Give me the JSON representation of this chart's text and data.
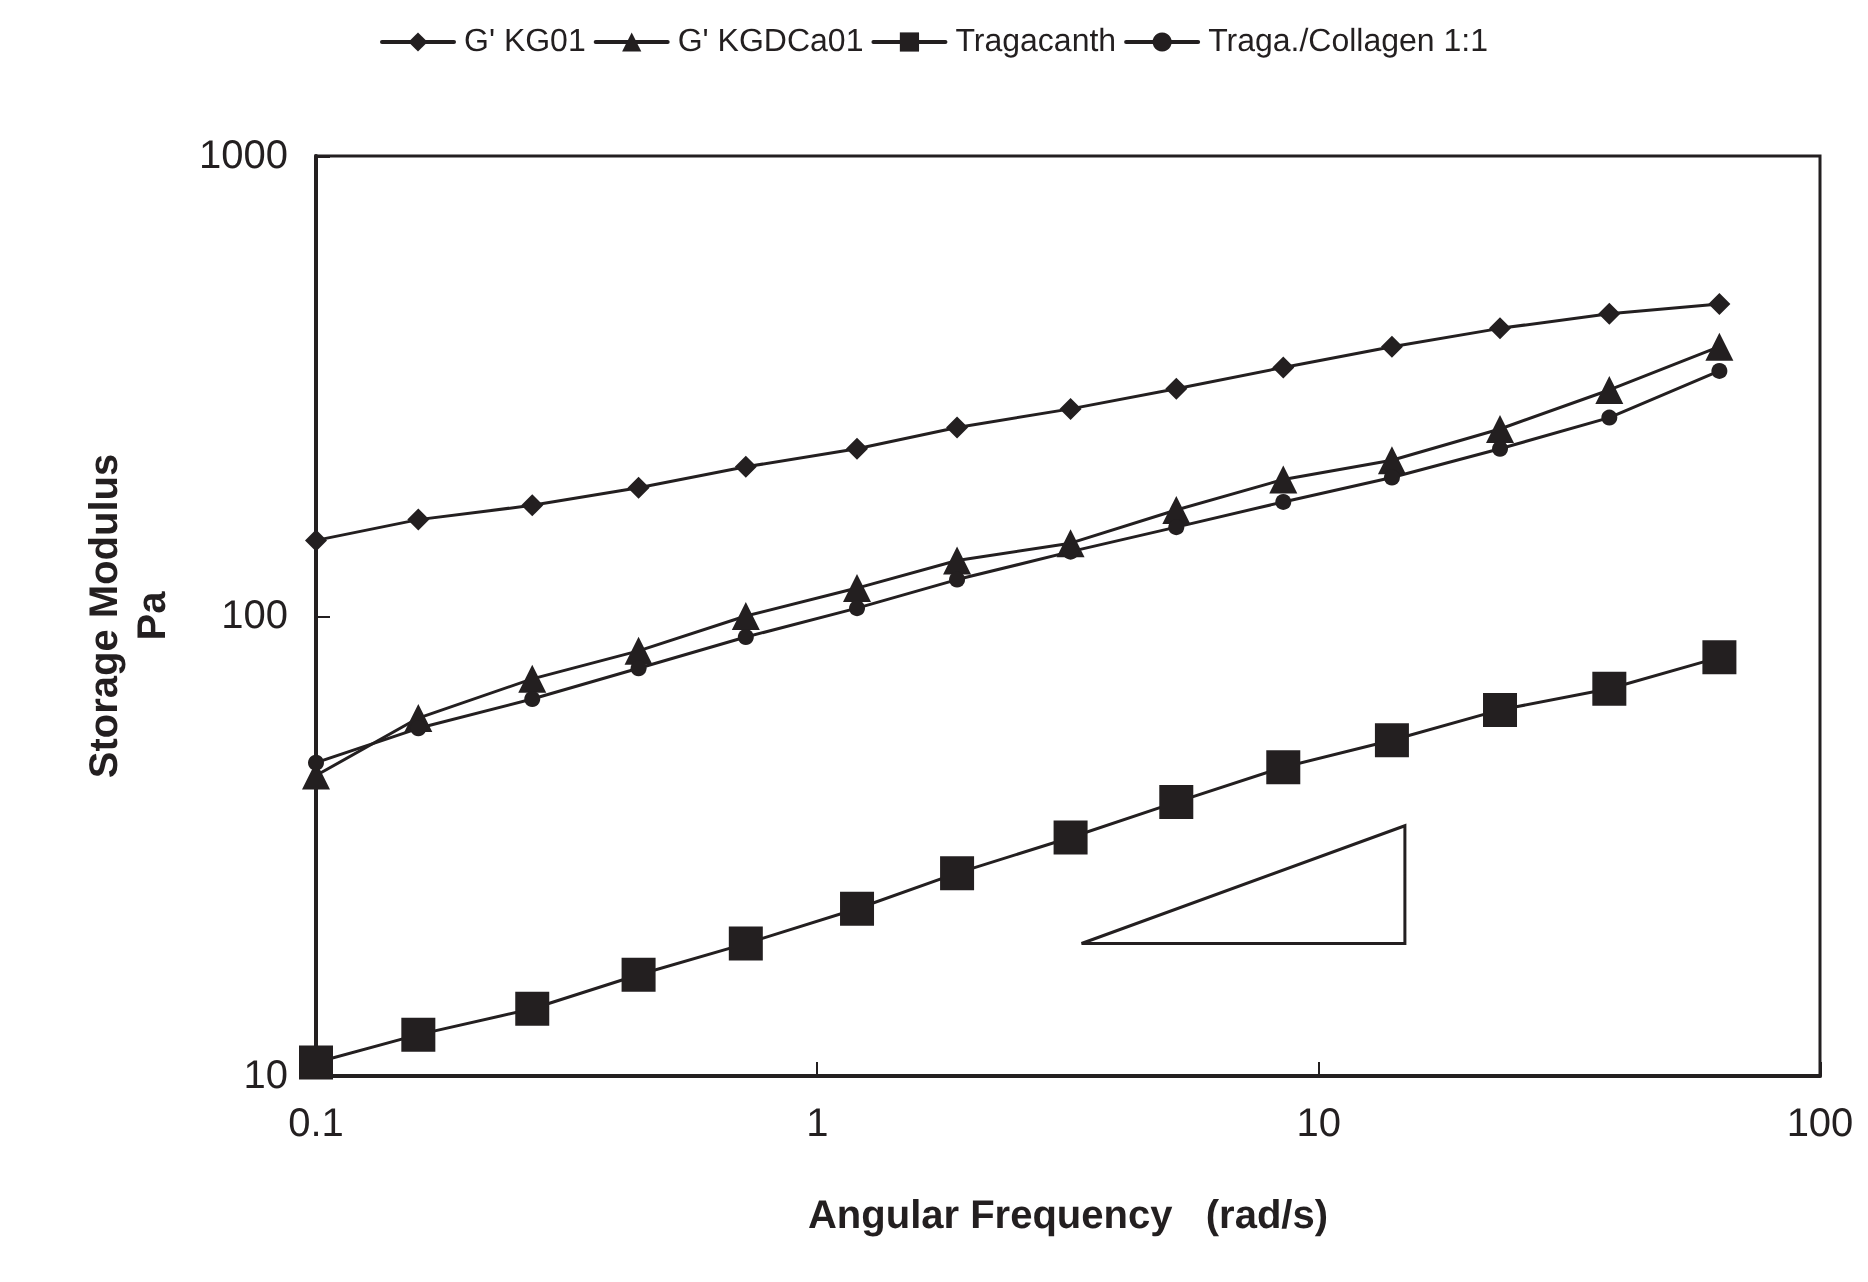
{
  "chart_data": {
    "type": "line",
    "xlabel": "Angular Frequency   (rad/s)",
    "ylabel": "Storage Modulus\nPa",
    "log": "xy",
    "grid": false,
    "legend": "top",
    "xlim": [
      0.1,
      100
    ],
    "xticks": [
      0.1,
      1,
      10,
      100
    ],
    "ylim": [
      10,
      1000
    ],
    "yticks": [
      10,
      100,
      1000
    ],
    "x": [
      0.1,
      0.16,
      0.27,
      0.44,
      0.72,
      1.2,
      1.9,
      3.2,
      5.2,
      8.5,
      14,
      23,
      38,
      63
    ],
    "series": [
      {
        "name": "G' KG01",
        "color": "#231f20",
        "marker": "diamond",
        "values": [
          146,
          162,
          174,
          190,
          211,
          231,
          257,
          282,
          312,
          347,
          385,
          422,
          454,
          477
        ]
      },
      {
        "name": "G' KGDCa01",
        "color": "#231f20",
        "marker": "triangle",
        "values": [
          45,
          60,
          73,
          84,
          100,
          115,
          132,
          144,
          170,
          198,
          218,
          255,
          310,
          385
        ]
      },
      {
        "name": "Tragacanth",
        "color": "#231f20",
        "marker": "square",
        "values": [
          10.7,
          12.3,
          14.0,
          16.6,
          19.4,
          23.1,
          27.6,
          33.0,
          39.4,
          46.9,
          53.7,
          62.5,
          69.5,
          81.3
        ]
      },
      {
        "name": "Traga./Collagen 1:1",
        "color": "#231f20",
        "marker": "circle",
        "values": [
          48,
          57,
          66,
          77,
          90,
          104,
          120,
          138,
          156,
          177,
          200,
          231,
          270,
          341
        ]
      }
    ]
  }
}
